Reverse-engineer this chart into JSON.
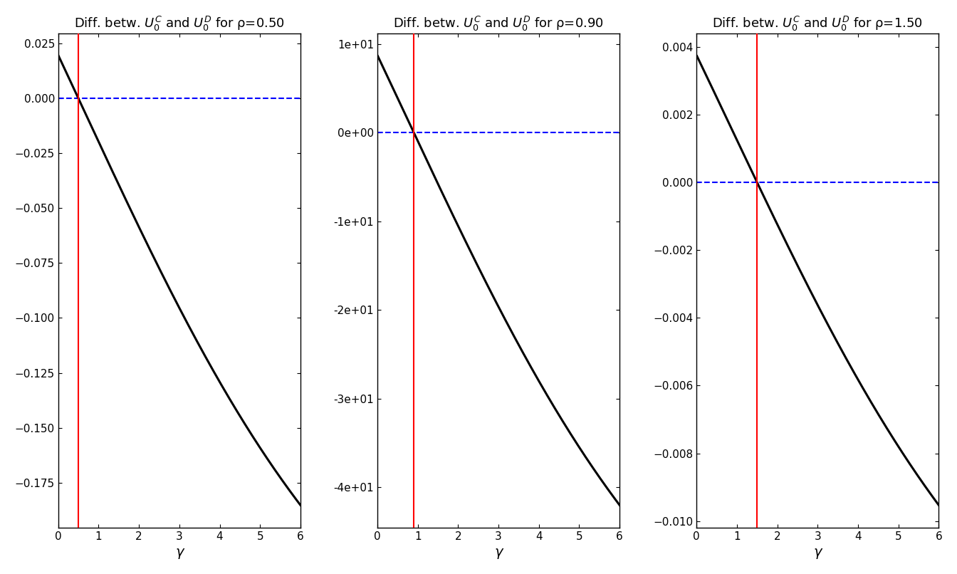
{
  "rho_values": [
    0.5,
    0.9,
    1.5
  ],
  "gamma_min": 0.01,
  "gamma_max": 6.0,
  "n_points": 2000,
  "xlim": [
    0,
    6
  ],
  "xticks": [
    0,
    1,
    2,
    3,
    4,
    5,
    6
  ],
  "xlabel": "γ",
  "titles": [
    "Diff. betw. $U_0^C$ and $U_0^D$ for ρ=0.50",
    "Diff. betw. $U_0^C$ and $U_0^D$ for ρ=0.90",
    "Diff. betw. $U_0^C$ and $U_0^D$ for ρ=1.50"
  ],
  "curve_color": "#000000",
  "hline_color": "#0000FF",
  "vline_color": "#FF0000",
  "curve_lw": 2.2,
  "hline_lw": 1.5,
  "vline_lw": 1.5,
  "bg_color": "#FFFFFF",
  "title_fontsize": 13,
  "label_fontsize": 14,
  "tick_fontsize": 11
}
